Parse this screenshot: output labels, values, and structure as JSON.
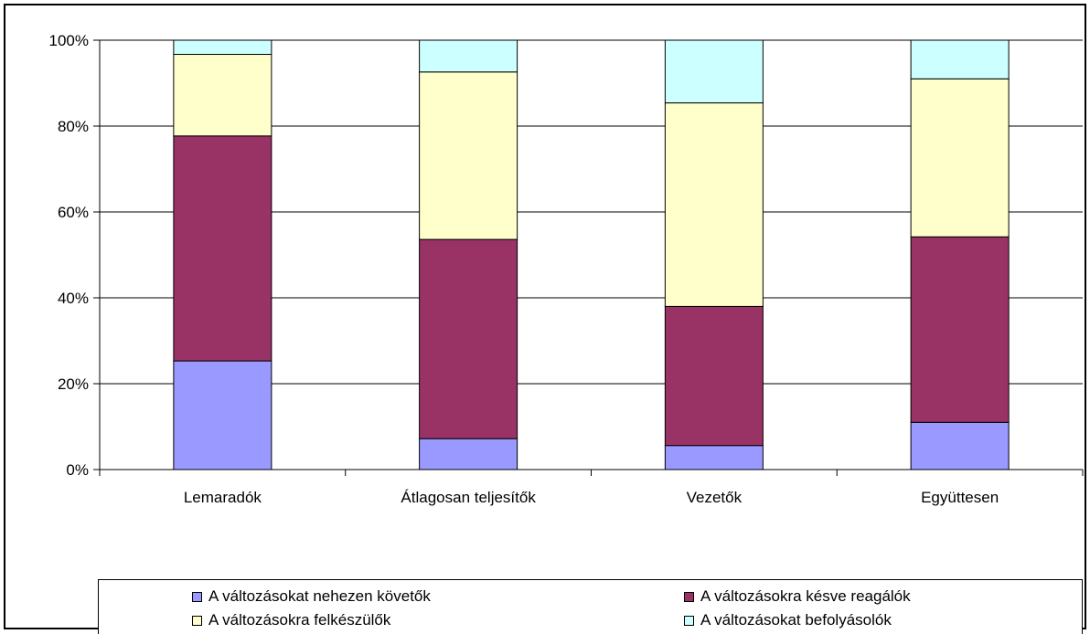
{
  "chart_data": {
    "type": "bar",
    "stacked": "percent",
    "categories": [
      "Lemaradók",
      "Átlagosan teljesítők",
      "Vezetők",
      "Együttesen"
    ],
    "series": [
      {
        "name": "A változásokat nehezen követők",
        "color": "#9999FF",
        "values": [
          25.3,
          7.2,
          5.6,
          11.0
        ]
      },
      {
        "name": "A változásokra késve reagálók",
        "color": "#993366",
        "values": [
          52.4,
          46.4,
          32.4,
          43.2
        ]
      },
      {
        "name": "A változásokra felkészülők",
        "color": "#FFFFCC",
        "values": [
          19.0,
          39.0,
          47.4,
          36.8
        ]
      },
      {
        "name": "A változásokat befolyásolók",
        "color": "#CCFFFF",
        "values": [
          3.3,
          7.4,
          14.6,
          9.0
        ]
      }
    ],
    "yticks": [
      "0%",
      "20%",
      "40%",
      "60%",
      "80%",
      "100%"
    ],
    "ylim": [
      0,
      100
    ],
    "grid": true,
    "legend_position": "bottom",
    "title": "",
    "xlabel": "",
    "ylabel": ""
  }
}
